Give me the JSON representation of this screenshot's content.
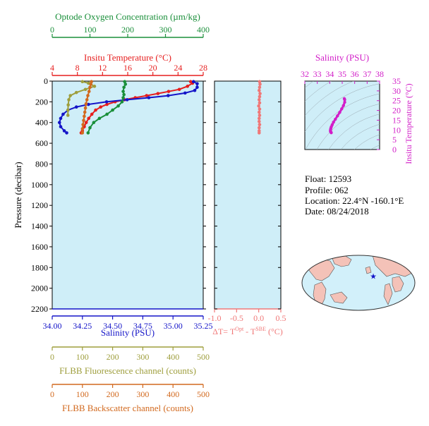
{
  "colors": {
    "oxygen": "#1a8f3a",
    "temperature": "#e61e1e",
    "salinity": "#1414c8",
    "fluorescence": "#9e9e3c",
    "backscatter": "#d2691e",
    "delta": "#f07878",
    "ts": "#d21ec8",
    "panel_bg": "#cfeef8",
    "map_land": "#f4c2b8",
    "map_ocean": "#d2f0fa"
  },
  "info": {
    "float": "Float:  12593",
    "profile": "Profile:  062",
    "location": "Location:  22.4°N  -160.1°E",
    "date": "Date:  08/24/2018"
  },
  "chart_data": [
    {
      "type": "line",
      "panel": "profile",
      "ylabel": "Pressure (decibar)",
      "ylim": [
        2200,
        0
      ],
      "yticks": [
        0,
        200,
        400,
        600,
        800,
        1000,
        1200,
        1400,
        1600,
        1800,
        2000,
        2200
      ],
      "ytick_labels": [
        "0",
        "200",
        "400",
        "600",
        "800",
        "1000",
        "1200",
        "1400",
        "1600",
        "1800",
        "2000",
        "2200"
      ],
      "axes": {
        "oxygen": {
          "title": "Optode Oxygen Concentration (µm/kg)",
          "range": [
            0,
            400
          ],
          "ticks": [
            0,
            100,
            200,
            300,
            400
          ],
          "labels": [
            "0",
            "100",
            "200",
            "300",
            "400"
          ]
        },
        "temperature": {
          "title": "Insitu Temperature (°C)",
          "range": [
            4,
            28
          ],
          "ticks": [
            4,
            8,
            12,
            16,
            20,
            24,
            28
          ],
          "labels": [
            "4",
            "8",
            "12",
            "16",
            "20",
            "24",
            "28"
          ]
        },
        "salinity": {
          "title": "Salinity (PSU)",
          "range": [
            34.0,
            35.25
          ],
          "ticks": [
            34.0,
            34.25,
            34.5,
            34.75,
            35.0,
            35.25
          ],
          "labels": [
            "34.00",
            "34.25",
            "34.50",
            "34.75",
            "35.00",
            "35.25"
          ]
        },
        "fluorescence": {
          "title": "FLBB Fluorescence channel (counts)",
          "range": [
            0,
            500
          ],
          "ticks": [
            0,
            100,
            200,
            300,
            400,
            500
          ],
          "labels": [
            "0",
            "100",
            "200",
            "300",
            "400",
            "500"
          ]
        },
        "backscatter": {
          "title": "FLBB Backscatter channel (counts)",
          "range": [
            0,
            500
          ],
          "ticks": [
            0,
            100,
            200,
            300,
            400,
            500
          ],
          "labels": [
            "0",
            "100",
            "200",
            "300",
            "400",
            "500"
          ]
        }
      },
      "series": [
        {
          "axis": "temperature",
          "points": [
            [
              26.0,
              5
            ],
            [
              26.3,
              20
            ],
            [
              25.5,
              50
            ],
            [
              24.2,
              80
            ],
            [
              22.5,
              100
            ],
            [
              20.8,
              120
            ],
            [
              19.0,
              140
            ],
            [
              17.2,
              160
            ],
            [
              15.5,
              180
            ],
            [
              14.0,
              200
            ],
            [
              12.7,
              225
            ],
            [
              11.7,
              250
            ],
            [
              10.9,
              280
            ],
            [
              10.3,
              320
            ],
            [
              9.8,
              360
            ],
            [
              9.4,
              400
            ],
            [
              9.1,
              440
            ],
            [
              8.8,
              480
            ],
            [
              8.6,
              500
            ]
          ]
        },
        {
          "axis": "salinity",
          "points": [
            [
              35.17,
              5
            ],
            [
              35.2,
              25
            ],
            [
              35.2,
              60
            ],
            [
              35.18,
              90
            ],
            [
              35.1,
              115
            ],
            [
              34.96,
              140
            ],
            [
              34.8,
              160
            ],
            [
              34.62,
              180
            ],
            [
              34.45,
              200
            ],
            [
              34.3,
              225
            ],
            [
              34.2,
              250
            ],
            [
              34.13,
              280
            ],
            [
              34.09,
              320
            ],
            [
              34.07,
              360
            ],
            [
              34.06,
              400
            ],
            [
              34.07,
              440
            ],
            [
              34.1,
              480
            ],
            [
              34.12,
              500
            ]
          ]
        },
        {
          "axis": "oxygen",
          "points": [
            [
              192,
              5
            ],
            [
              194,
              30
            ],
            [
              190,
              60
            ],
            [
              188,
              100
            ],
            [
              190,
              130
            ],
            [
              188,
              160
            ],
            [
              185,
              200
            ],
            [
              175,
              240
            ],
            [
              160,
              280
            ],
            [
              145,
              320
            ],
            [
              125,
              360
            ],
            [
              110,
              400
            ],
            [
              100,
              450
            ],
            [
              95,
              500
            ]
          ]
        },
        {
          "axis": "fluorescence",
          "points": [
            [
              100,
              5
            ],
            [
              120,
              20
            ],
            [
              140,
              50
            ],
            [
              110,
              80
            ],
            [
              80,
              110
            ],
            [
              60,
              140
            ],
            [
              55,
              180
            ],
            [
              53,
              230
            ],
            [
              52,
              280
            ],
            [
              52,
              330
            ]
          ]
        },
        {
          "axis": "backscatter",
          "points": [
            [
              130,
              5
            ],
            [
              128,
              30
            ],
            [
              125,
              60
            ],
            [
              122,
              100
            ],
            [
              118,
              140
            ],
            [
              115,
              180
            ],
            [
              112,
              220
            ],
            [
              110,
              260
            ],
            [
              108,
              300
            ],
            [
              106,
              340
            ],
            [
              104,
              380
            ],
            [
              102,
              420
            ],
            [
              100,
              460
            ],
            [
              100,
              500
            ]
          ]
        }
      ]
    },
    {
      "type": "scatter",
      "panel": "delta",
      "xlabel": "ΔT= T",
      "xlabel_sup1": "Opt",
      "xlabel_mid": " - T",
      "xlabel_sup2": "SBE",
      "xlabel_unit": " (°C)",
      "xlim": [
        -1.0,
        0.5
      ],
      "ylim": [
        2200,
        0
      ],
      "xticks": [
        -1.0,
        -0.5,
        0.0,
        0.5
      ],
      "xtick_labels": [
        "-1.0",
        "-0.5",
        "0.0",
        "0.5"
      ],
      "points": [
        [
          0.02,
          5
        ],
        [
          0.03,
          30
        ],
        [
          0.02,
          60
        ],
        [
          0.01,
          90
        ],
        [
          0.03,
          120
        ],
        [
          0.02,
          150
        ],
        [
          0.01,
          180
        ],
        [
          0.02,
          210
        ],
        [
          0.0,
          240
        ],
        [
          0.02,
          270
        ],
        [
          0.01,
          300
        ],
        [
          0.02,
          330
        ],
        [
          0.01,
          360
        ],
        [
          0.01,
          390
        ],
        [
          0.02,
          420
        ],
        [
          0.01,
          450
        ],
        [
          0.01,
          480
        ],
        [
          0.01,
          500
        ]
      ]
    },
    {
      "type": "scatter",
      "panel": "ts",
      "xlabel": "Salinity (PSU)",
      "ylabel": "Insitu Temperature (°C)",
      "xlim": [
        32,
        38
      ],
      "ylim": [
        0,
        35
      ],
      "xticks": [
        32,
        33,
        34,
        35,
        36,
        37,
        38
      ],
      "xtick_labels": [
        "32",
        "33",
        "34",
        "35",
        "36",
        "37",
        "38"
      ],
      "yticks": [
        0,
        5,
        10,
        15,
        20,
        25,
        30,
        35
      ],
      "ytick_labels": [
        "0",
        "5",
        "10",
        "15",
        "20",
        "25",
        "30",
        "35"
      ],
      "points": [
        [
          35.17,
          26.0
        ],
        [
          35.2,
          25.5
        ],
        [
          35.2,
          24.2
        ],
        [
          35.1,
          22.5
        ],
        [
          34.96,
          20.8
        ],
        [
          34.8,
          19.0
        ],
        [
          34.62,
          17.2
        ],
        [
          34.45,
          15.5
        ],
        [
          34.3,
          14.0
        ],
        [
          34.2,
          12.7
        ],
        [
          34.13,
          11.7
        ],
        [
          34.09,
          10.9
        ],
        [
          34.07,
          10.3
        ],
        [
          34.06,
          9.8
        ],
        [
          34.06,
          9.4
        ],
        [
          34.07,
          9.1
        ],
        [
          34.1,
          8.8
        ],
        [
          34.12,
          8.6
        ]
      ]
    }
  ],
  "map": {
    "marker_lat": 22.4,
    "marker_lon": -160.1
  }
}
